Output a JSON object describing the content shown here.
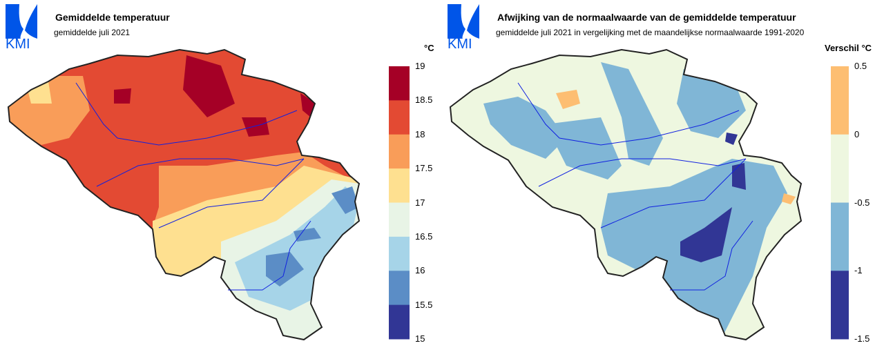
{
  "left": {
    "logo_text": "KMI",
    "title": "Gemiddelde temperatuur",
    "subtitle": "gemiddelde juli 2021",
    "legend_unit": "°C",
    "legend_ticks": [
      "19",
      "18.5",
      "18",
      "17.5",
      "17",
      "16.5",
      "16",
      "15.5",
      "15"
    ],
    "legend_colors": [
      "#a50026",
      "#e34a33",
      "#f99d59",
      "#fee090",
      "#e8f4e6",
      "#a6d4e8",
      "#5b8dc6",
      "#313695"
    ]
  },
  "right": {
    "logo_text": "KMI",
    "title": "Afwijking van de normaalwaarde van de gemiddelde temperatuur",
    "subtitle": "gemiddelde juli 2021 in vergelijking met de maandelijkse normaalwaarde 1991-2020",
    "legend_unit": "Verschil °C",
    "legend_ticks": [
      "0.5",
      "0",
      "-0.5",
      "-1",
      "-1.5"
    ],
    "legend_colors": [
      "#fdbe72",
      "#eef7e0",
      "#80b6d6",
      "#313695"
    ]
  }
}
